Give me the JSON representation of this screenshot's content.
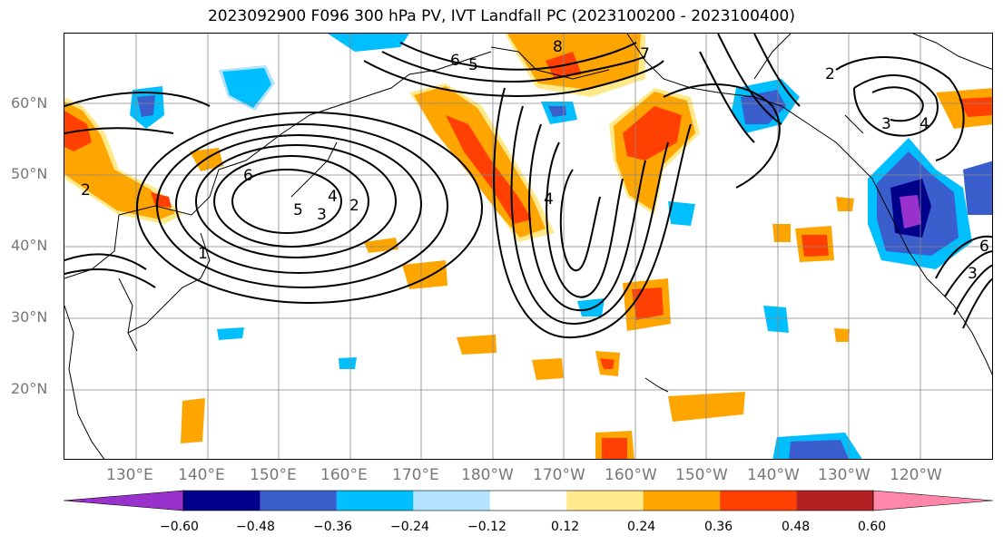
{
  "title": "2023092900 F096 300 hPa PV, IVT Landfall PC (2023100200 - 2023100400)",
  "lat_labels": [
    "60°N",
    "50°N",
    "40°N",
    "30°N",
    "20°N"
  ],
  "lon_labels": [
    "130°E",
    "140°E",
    "150°E",
    "160°E",
    "170°E",
    "180°W",
    "170°W",
    "160°W",
    "150°W",
    "140°W",
    "130°W",
    "120°W"
  ],
  "contour_labels": [
    "6",
    "5",
    "4",
    "3",
    "2",
    "1",
    "6",
    "5",
    "8",
    "7",
    "2",
    "3",
    "4",
    "6",
    "3",
    "2",
    "4"
  ],
  "colorbar": {
    "ticks": [
      "−0.60",
      "−0.48",
      "−0.36",
      "−0.24",
      "−0.12",
      "0.12",
      "0.24",
      "0.36",
      "0.48",
      "0.60"
    ],
    "colors": [
      "#9932cc",
      "#00008b",
      "#3a5fcd",
      "#00bfff",
      "#b2e2ff",
      "#ffffff",
      "#ffe98a",
      "#ffa500",
      "#ff4000",
      "#b22222",
      "#ff88aa"
    ]
  }
}
